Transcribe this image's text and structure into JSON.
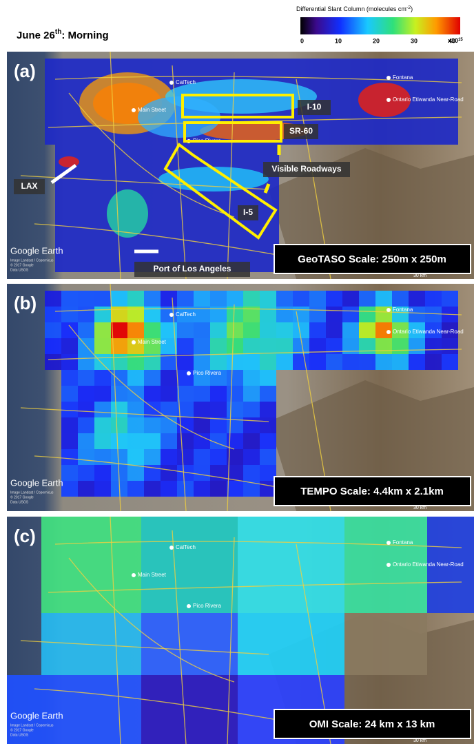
{
  "header": {
    "title": {
      "date": "June 26",
      "sup": "th",
      "rest": ": Morning"
    }
  },
  "colorbar": {
    "title": "Differential Slant Column (molecules cm",
    "title_sup": "-2",
    "title_end": ")",
    "ticks": [
      "0",
      "10",
      "20",
      "30",
      "40"
    ],
    "multiplier": "x10",
    "multiplier_sup": "15"
  },
  "panels": [
    {
      "label": "(a)",
      "scale": "GeoTASO Scale: 250m x 250m",
      "annotations": [
        "I-10",
        "SR-60",
        "Visible Roadways",
        "I-5",
        "LAX",
        "Port of Los Angeles"
      ]
    },
    {
      "label": "(b)",
      "scale": "TEMPO Scale: 4.4km x 2.1km"
    },
    {
      "label": "(c)",
      "scale": "OMI Scale: 24 km x 13 km"
    }
  ],
  "map": {
    "places": [
      "CalTech",
      "Main Street",
      "Pico Rivera",
      "Fontana",
      "Ontario Etiwanda Near-Road"
    ],
    "logo": "Google Earth",
    "credits": [
      "Image Landsat / Copernicus",
      "© 2017 Google",
      "Data USGS"
    ],
    "distance": "30 km"
  }
}
